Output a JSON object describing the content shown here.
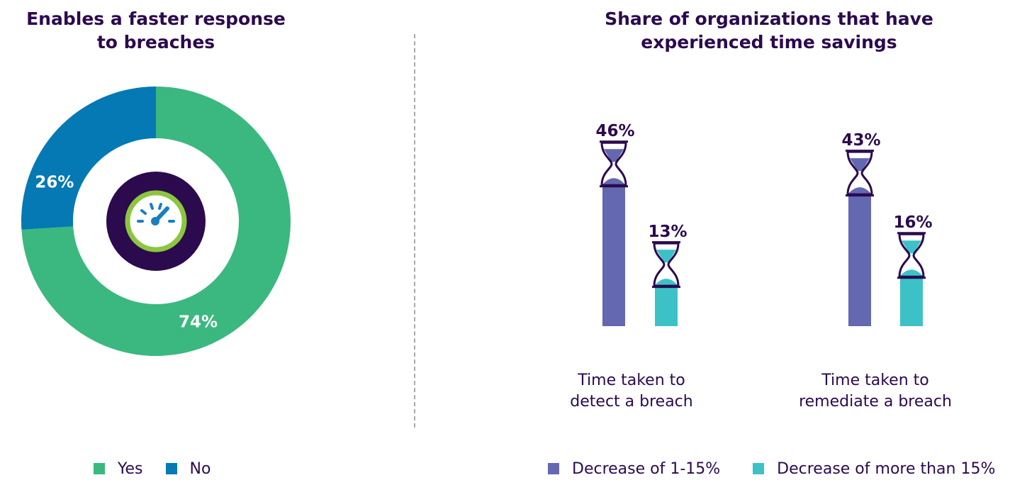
{
  "chart_data": [
    {
      "type": "pie",
      "title": "Enables a faster response to breaches",
      "title_lines": [
        "Enables a faster response",
        "to breaches"
      ],
      "categories": [
        "Yes",
        "No"
      ],
      "values": [
        74,
        26
      ],
      "labels": [
        "74%",
        "26%"
      ],
      "colors": {
        "Yes": "#3bb87f",
        "No": "#0479b4"
      },
      "legend": "bottom",
      "center_icon": "speedometer-icon"
    },
    {
      "type": "bar",
      "title": "Share of organizations that have experienced time savings",
      "title_lines": [
        "Share of organizations that have",
        "experienced time savings"
      ],
      "categories": [
        "Time taken to detect a breach",
        "Time taken to remediate a breach"
      ],
      "category_lines": [
        [
          "Time taken to",
          "detect a breach"
        ],
        [
          "Time taken to",
          "remediate a breach"
        ]
      ],
      "series": [
        {
          "name": "Decrease of 1-15%",
          "values": [
            46,
            43
          ],
          "labels": [
            "46%",
            "43%"
          ],
          "color": "#6368b1"
        },
        {
          "name": "Decrease of more than 15%",
          "values": [
            13,
            16
          ],
          "labels": [
            "13%",
            "16%"
          ],
          "color": "#3cc2c6"
        }
      ],
      "ylim": [
        0,
        50
      ],
      "grid": false,
      "legend": "bottom",
      "bar_cap_icon": "hourglass-icon"
    }
  ]
}
